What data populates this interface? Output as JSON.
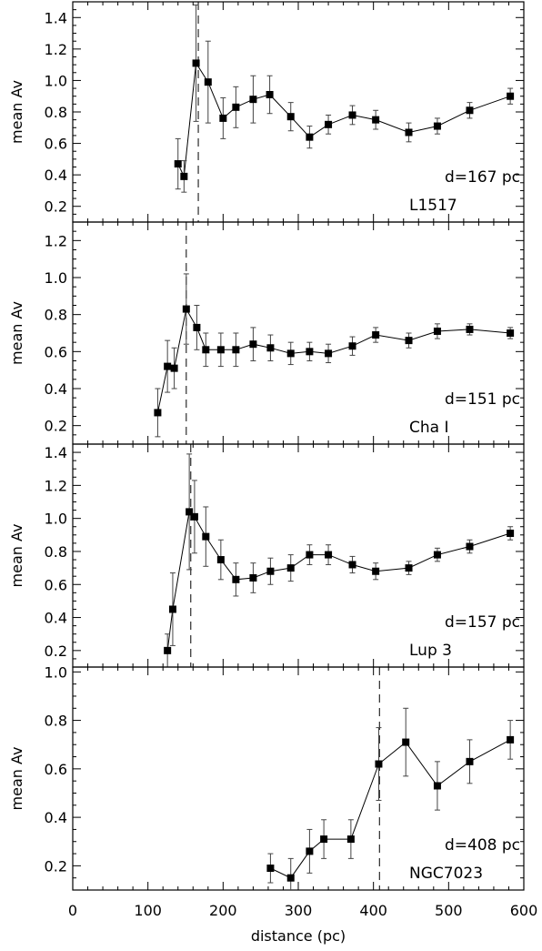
{
  "figure": {
    "xlabel": "distance (pc)",
    "x_ticks": [
      "0",
      "100",
      "200",
      "300",
      "400",
      "500",
      "600"
    ]
  },
  "chart_data": [
    {
      "type": "line",
      "ylabel": "mean Av",
      "xlim": [
        0,
        600
      ],
      "ylim": [
        0.1,
        1.5
      ],
      "yticks": [
        0.2,
        0.4,
        0.6,
        0.8,
        1.0,
        1.2,
        1.4
      ],
      "ytick_labels": [
        "0.2",
        "0.4",
        "0.6",
        "0.8",
        "1.0",
        "1.2",
        "1.4"
      ],
      "annotation_distance": "d=167 pc",
      "annotation_cloud": "L1517",
      "marker_x": 167,
      "points": [
        {
          "x": 140,
          "y": 0.47,
          "err": 0.16
        },
        {
          "x": 148,
          "y": 0.39,
          "err": 0.1
        },
        {
          "x": 164,
          "y": 1.11,
          "err": 0.37
        },
        {
          "x": 180,
          "y": 0.99,
          "err": 0.26
        },
        {
          "x": 200,
          "y": 0.76,
          "err": 0.13
        },
        {
          "x": 217,
          "y": 0.83,
          "err": 0.13
        },
        {
          "x": 240,
          "y": 0.88,
          "err": 0.15
        },
        {
          "x": 262,
          "y": 0.91,
          "err": 0.12
        },
        {
          "x": 290,
          "y": 0.77,
          "err": 0.09
        },
        {
          "x": 315,
          "y": 0.64,
          "err": 0.07
        },
        {
          "x": 340,
          "y": 0.72,
          "err": 0.06
        },
        {
          "x": 372,
          "y": 0.78,
          "err": 0.06
        },
        {
          "x": 403,
          "y": 0.75,
          "err": 0.06
        },
        {
          "x": 447,
          "y": 0.67,
          "err": 0.06
        },
        {
          "x": 485,
          "y": 0.71,
          "err": 0.05
        },
        {
          "x": 528,
          "y": 0.81,
          "err": 0.05
        },
        {
          "x": 582,
          "y": 0.9,
          "err": 0.05
        }
      ]
    },
    {
      "type": "line",
      "ylabel": "mean Av",
      "xlim": [
        0,
        600
      ],
      "ylim": [
        0.1,
        1.3
      ],
      "yticks": [
        0.2,
        0.4,
        0.6,
        0.8,
        1.0,
        1.2
      ],
      "ytick_labels": [
        "0.2",
        "0.4",
        "0.6",
        "0.8",
        "1.0",
        "1.2"
      ],
      "annotation_distance": "d=151 pc",
      "annotation_cloud": "Cha I",
      "marker_x": 151,
      "points": [
        {
          "x": 113,
          "y": 0.27,
          "err": 0.13
        },
        {
          "x": 126,
          "y": 0.52,
          "err": 0.14
        },
        {
          "x": 135,
          "y": 0.51,
          "err": 0.11
        },
        {
          "x": 151,
          "y": 0.83,
          "err": 0.19
        },
        {
          "x": 165,
          "y": 0.73,
          "err": 0.12
        },
        {
          "x": 177,
          "y": 0.61,
          "err": 0.09
        },
        {
          "x": 197,
          "y": 0.61,
          "err": 0.09
        },
        {
          "x": 217,
          "y": 0.61,
          "err": 0.09
        },
        {
          "x": 240,
          "y": 0.64,
          "err": 0.09
        },
        {
          "x": 263,
          "y": 0.62,
          "err": 0.07
        },
        {
          "x": 290,
          "y": 0.59,
          "err": 0.06
        },
        {
          "x": 315,
          "y": 0.6,
          "err": 0.05
        },
        {
          "x": 340,
          "y": 0.59,
          "err": 0.05
        },
        {
          "x": 372,
          "y": 0.63,
          "err": 0.05
        },
        {
          "x": 403,
          "y": 0.69,
          "err": 0.04
        },
        {
          "x": 447,
          "y": 0.66,
          "err": 0.04
        },
        {
          "x": 485,
          "y": 0.71,
          "err": 0.04
        },
        {
          "x": 528,
          "y": 0.72,
          "err": 0.03
        },
        {
          "x": 582,
          "y": 0.7,
          "err": 0.03
        }
      ]
    },
    {
      "type": "line",
      "ylabel": "mean Av",
      "xlim": [
        0,
        600
      ],
      "ylim": [
        0.1,
        1.45
      ],
      "yticks": [
        0.2,
        0.4,
        0.6,
        0.8,
        1.0,
        1.2,
        1.4
      ],
      "ytick_labels": [
        "0.2",
        "0.4",
        "0.6",
        "0.8",
        "1.0",
        "1.2",
        "1.4"
      ],
      "annotation_distance": "d=157 pc",
      "annotation_cloud": "Lup 3",
      "marker_x": 157,
      "points": [
        {
          "x": 126,
          "y": 0.2,
          "err": 0.1
        },
        {
          "x": 133,
          "y": 0.45,
          "err": 0.22
        },
        {
          "x": 155,
          "y": 1.04,
          "err": 0.35
        },
        {
          "x": 162,
          "y": 1.01,
          "err": 0.22
        },
        {
          "x": 177,
          "y": 0.89,
          "err": 0.18
        },
        {
          "x": 197,
          "y": 0.75,
          "err": 0.12
        },
        {
          "x": 217,
          "y": 0.63,
          "err": 0.1
        },
        {
          "x": 240,
          "y": 0.64,
          "err": 0.09
        },
        {
          "x": 263,
          "y": 0.68,
          "err": 0.08
        },
        {
          "x": 290,
          "y": 0.7,
          "err": 0.08
        },
        {
          "x": 315,
          "y": 0.78,
          "err": 0.06
        },
        {
          "x": 340,
          "y": 0.78,
          "err": 0.06
        },
        {
          "x": 372,
          "y": 0.72,
          "err": 0.05
        },
        {
          "x": 403,
          "y": 0.68,
          "err": 0.05
        },
        {
          "x": 447,
          "y": 0.7,
          "err": 0.04
        },
        {
          "x": 485,
          "y": 0.78,
          "err": 0.04
        },
        {
          "x": 528,
          "y": 0.83,
          "err": 0.04
        },
        {
          "x": 582,
          "y": 0.91,
          "err": 0.04
        }
      ]
    },
    {
      "type": "line",
      "ylabel": "mean Av",
      "xlim": [
        0,
        600
      ],
      "ylim": [
        0.1,
        1.02
      ],
      "yticks": [
        0.2,
        0.4,
        0.6,
        0.8,
        1.0
      ],
      "ytick_labels": [
        "0.2",
        "0.4",
        "0.6",
        "0.8",
        "1.0"
      ],
      "annotation_distance": "d=408 pc",
      "annotation_cloud": "NGC7023",
      "marker_x": 408,
      "points": [
        {
          "x": 263,
          "y": 0.19,
          "err": 0.06
        },
        {
          "x": 290,
          "y": 0.15,
          "err": 0.08
        },
        {
          "x": 315,
          "y": 0.26,
          "err": 0.09
        },
        {
          "x": 334,
          "y": 0.31,
          "err": 0.08
        },
        {
          "x": 370,
          "y": 0.31,
          "err": 0.08
        },
        {
          "x": 407,
          "y": 0.62,
          "err": 0.15
        },
        {
          "x": 443,
          "y": 0.71,
          "err": 0.14
        },
        {
          "x": 485,
          "y": 0.53,
          "err": 0.1
        },
        {
          "x": 528,
          "y": 0.63,
          "err": 0.09
        },
        {
          "x": 582,
          "y": 0.72,
          "err": 0.08
        }
      ]
    }
  ]
}
